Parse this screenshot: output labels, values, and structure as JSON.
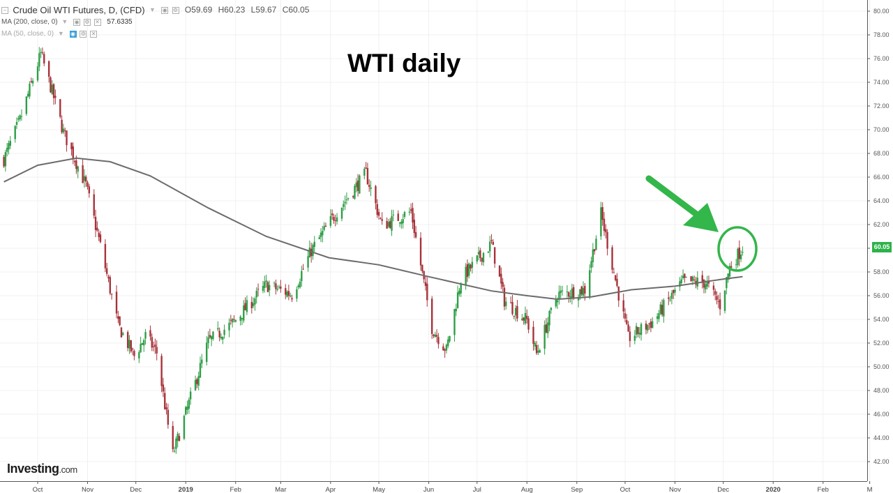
{
  "legend": {
    "symbol": "Crude Oil WTI Futures, D, (CFD)",
    "open": "O59.69",
    "high": "H60.23",
    "low": "L59.67",
    "close": "C60.05",
    "ma200_label": "MA (200, close, 0)",
    "ma200_value": "57.6335",
    "ma50_label": "MA (50, close, 0)"
  },
  "title": "WTI daily",
  "brand": {
    "name": "Investing",
    "suffix": ".com"
  },
  "last_price": "60.05",
  "colors": {
    "up": "#2e9e46",
    "down": "#a8323a",
    "ma": "#6b6b6b",
    "annotation": "#33b64a"
  },
  "chart_data": {
    "type": "candlestick",
    "title": "WTI daily",
    "ylim": [
      41,
      81
    ],
    "y_ticks": [
      "42.00",
      "44.00",
      "46.00",
      "48.00",
      "50.00",
      "52.00",
      "54.00",
      "56.00",
      "58.00",
      "60.00",
      "62.00",
      "64.00",
      "66.00",
      "68.00",
      "70.00",
      "72.00",
      "74.00",
      "76.00",
      "78.00",
      "80.00"
    ],
    "x_ticks": [
      "Oct",
      "Nov",
      "Dec",
      "2019",
      "Feb",
      "Mar",
      "Apr",
      "May",
      "Jun",
      "Jul",
      "Aug",
      "Sep",
      "Oct",
      "Nov",
      "Dec",
      "2020",
      "Feb",
      "M"
    ],
    "x_tick_dates": [
      "2018-10-01",
      "2018-11-01",
      "2018-12-01",
      "2019-01-01",
      "2019-02-01",
      "2019-03-01",
      "2019-04-01",
      "2019-05-01",
      "2019-06-01",
      "2019-07-01",
      "2019-08-01",
      "2019-09-01",
      "2019-10-01",
      "2019-11-01",
      "2019-12-01",
      "2020-01-01",
      "2020-02-01",
      "2020-03-01"
    ],
    "series_close_path": [
      [
        "2018-09-10",
        67.5
      ],
      [
        "2018-09-20",
        70.8
      ],
      [
        "2018-10-03",
        76.4
      ],
      [
        "2018-10-10",
        73.2
      ],
      [
        "2018-10-17",
        69.8
      ],
      [
        "2018-10-31",
        65.3
      ],
      [
        "2018-11-09",
        60.2
      ],
      [
        "2018-11-20",
        53.5
      ],
      [
        "2018-11-30",
        50.9
      ],
      [
        "2018-12-07",
        52.6
      ],
      [
        "2018-12-14",
        51.2
      ],
      [
        "2018-12-20",
        45.9
      ],
      [
        "2018-12-24",
        42.6
      ],
      [
        "2019-01-02",
        46.5
      ],
      [
        "2019-01-15",
        52.1
      ],
      [
        "2019-01-31",
        53.8
      ],
      [
        "2019-02-20",
        56.9
      ],
      [
        "2019-03-08",
        56.1
      ],
      [
        "2019-03-20",
        59.8
      ],
      [
        "2019-04-05",
        63.1
      ],
      [
        "2019-04-23",
        66.3
      ],
      [
        "2019-05-03",
        61.9
      ],
      [
        "2019-05-21",
        63.1
      ],
      [
        "2019-06-03",
        53.3
      ],
      [
        "2019-06-12",
        51.4
      ],
      [
        "2019-06-21",
        57.4
      ],
      [
        "2019-07-10",
        60.4
      ],
      [
        "2019-07-18",
        55.6
      ],
      [
        "2019-08-01",
        53.9
      ],
      [
        "2019-08-07",
        51.1
      ],
      [
        "2019-08-20",
        56.1
      ],
      [
        "2019-09-06",
        56.5
      ],
      [
        "2019-09-16",
        62.9
      ],
      [
        "2019-09-23",
        58.6
      ],
      [
        "2019-10-03",
        52.4
      ],
      [
        "2019-10-18",
        53.8
      ],
      [
        "2019-11-06",
        57.2
      ],
      [
        "2019-11-20",
        57.1
      ],
      [
        "2019-11-29",
        55.2
      ],
      [
        "2019-12-05",
        58.4
      ],
      [
        "2019-12-13",
        60.05
      ]
    ],
    "ma200_path": [
      [
        "2018-09-10",
        65.6
      ],
      [
        "2018-10-01",
        67.0
      ],
      [
        "2018-10-25",
        67.6
      ],
      [
        "2018-11-15",
        67.3
      ],
      [
        "2018-12-10",
        66.1
      ],
      [
        "2019-01-15",
        63.4
      ],
      [
        "2019-02-20",
        61.0
      ],
      [
        "2019-03-31",
        59.2
      ],
      [
        "2019-05-01",
        58.6
      ],
      [
        "2019-06-01",
        57.6
      ],
      [
        "2019-07-10",
        56.4
      ],
      [
        "2019-08-01",
        56.0
      ],
      [
        "2019-08-20",
        55.7
      ],
      [
        "2019-09-10",
        55.9
      ],
      [
        "2019-10-05",
        56.5
      ],
      [
        "2019-11-01",
        56.8
      ],
      [
        "2019-12-01",
        57.4
      ],
      [
        "2019-12-13",
        57.6
      ]
    ],
    "annotation": {
      "type": "arrow-and-circle",
      "at": [
        "2019-12-10",
        59.8
      ]
    }
  }
}
